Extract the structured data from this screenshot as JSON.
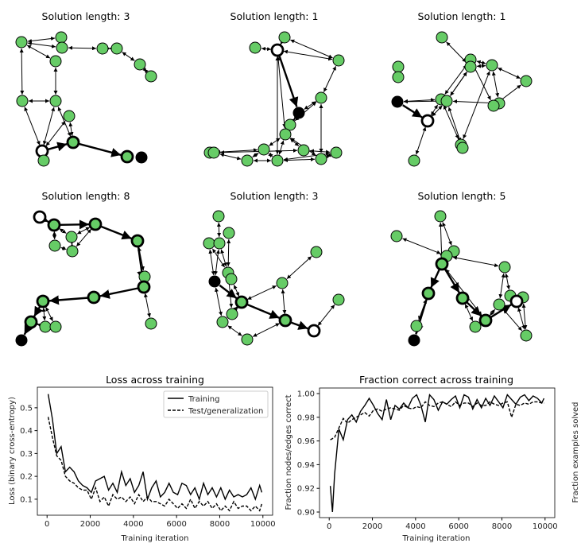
{
  "graph_panels": [
    {
      "title": "Solution length: 3"
    },
    {
      "title": "Solution length: 1"
    },
    {
      "title": "Solution length: 1"
    },
    {
      "title": "Solution length: 8"
    },
    {
      "title": "Solution length: 3"
    },
    {
      "title": "Solution length: 5"
    }
  ],
  "colors": {
    "node": "#66cc66",
    "edge": "#000000",
    "start": "#ffffff",
    "end": "#000000"
  },
  "chart_data": [
    {
      "type": "line",
      "title": "Loss across training",
      "xlabel": "Training iteration",
      "ylabel": "Loss (binary cross-entropy)",
      "xlim": [
        -450,
        10450
      ],
      "ylim": [
        0.03,
        0.59
      ],
      "xticks": [
        0,
        2000,
        4000,
        6000,
        8000,
        10000
      ],
      "yticks": [
        0.1,
        0.2,
        0.3,
        0.4,
        0.5
      ],
      "legend": "top-right",
      "x": [
        50,
        250,
        450,
        650,
        850,
        1050,
        1250,
        1450,
        1650,
        1850,
        2050,
        2250,
        2450,
        2650,
        2850,
        3050,
        3250,
        3450,
        3650,
        3850,
        4050,
        4250,
        4450,
        4650,
        4850,
        5050,
        5250,
        5450,
        5650,
        5850,
        6050,
        6250,
        6450,
        6650,
        6850,
        7050,
        7250,
        7450,
        7650,
        7850,
        8050,
        8250,
        8450,
        8650,
        8850,
        9050,
        9250,
        9450,
        9650,
        9850,
        9950
      ],
      "series": [
        {
          "name": "Training",
          "style": "solid",
          "values": [
            0.56,
            0.45,
            0.3,
            0.33,
            0.22,
            0.24,
            0.22,
            0.18,
            0.16,
            0.15,
            0.13,
            0.18,
            0.19,
            0.2,
            0.14,
            0.17,
            0.13,
            0.22,
            0.16,
            0.19,
            0.13,
            0.16,
            0.22,
            0.1,
            0.15,
            0.18,
            0.11,
            0.13,
            0.17,
            0.13,
            0.12,
            0.17,
            0.16,
            0.12,
            0.15,
            0.1,
            0.17,
            0.12,
            0.15,
            0.11,
            0.15,
            0.1,
            0.14,
            0.11,
            0.12,
            0.11,
            0.12,
            0.15,
            0.1,
            0.16,
            0.13
          ]
        },
        {
          "name": "Test/generalization",
          "style": "dashed",
          "values": [
            0.46,
            0.37,
            0.29,
            0.27,
            0.2,
            0.18,
            0.17,
            0.15,
            0.14,
            0.14,
            0.1,
            0.15,
            0.09,
            0.11,
            0.07,
            0.12,
            0.1,
            0.11,
            0.09,
            0.11,
            0.08,
            0.12,
            0.09,
            0.11,
            0.09,
            0.09,
            0.08,
            0.07,
            0.1,
            0.08,
            0.06,
            0.08,
            0.06,
            0.1,
            0.06,
            0.09,
            0.07,
            0.09,
            0.06,
            0.08,
            0.05,
            0.07,
            0.05,
            0.09,
            0.06,
            0.07,
            0.07,
            0.05,
            0.07,
            0.05,
            0.08
          ]
        }
      ]
    },
    {
      "type": "line",
      "title": "Fraction correct across training",
      "xlabel": "Training iteration",
      "ylabel": "Fraction nodes/edges correct",
      "ylabel_right": "Fraction examples solved",
      "xlim": [
        -450,
        10450
      ],
      "ylim": [
        0.8953,
        1.0047
      ],
      "xticks": [
        0,
        2000,
        4000,
        6000,
        8000,
        10000
      ],
      "yticks": [
        0.9,
        0.92,
        0.94,
        0.96,
        0.98,
        1.0
      ],
      "x": [
        50,
        150,
        250,
        450,
        650,
        850,
        1050,
        1250,
        1450,
        1650,
        1850,
        2050,
        2250,
        2450,
        2650,
        2850,
        3050,
        3250,
        3450,
        3650,
        3850,
        4050,
        4250,
        4450,
        4650,
        4850,
        5050,
        5250,
        5450,
        5650,
        5850,
        6050,
        6250,
        6450,
        6650,
        6850,
        7050,
        7250,
        7450,
        7650,
        7850,
        8050,
        8250,
        8450,
        8650,
        8850,
        9050,
        9250,
        9450,
        9650,
        9850,
        9950
      ],
      "series": [
        {
          "name": "Training",
          "style": "solid",
          "values": [
            0.922,
            0.9,
            0.932,
            0.97,
            0.961,
            0.978,
            0.982,
            0.976,
            0.985,
            0.99,
            0.996,
            0.99,
            0.983,
            0.978,
            0.995,
            0.978,
            0.99,
            0.987,
            0.992,
            0.988,
            0.996,
            0.999,
            0.99,
            0.976,
            0.999,
            0.995,
            0.986,
            0.993,
            0.991,
            0.995,
            0.998,
            0.988,
            0.999,
            0.997,
            0.987,
            0.995,
            0.988,
            0.996,
            0.99,
            0.998,
            0.993,
            0.988,
            0.999,
            0.995,
            0.991,
            0.997,
            0.999,
            0.994,
            0.998,
            0.996,
            0.992,
            0.996
          ]
        },
        {
          "name": "Test/generalization",
          "style": "dashed",
          "values": [
            0.961,
            0.962,
            0.963,
            0.971,
            0.979,
            0.975,
            0.978,
            0.98,
            0.982,
            0.984,
            0.981,
            0.986,
            0.987,
            0.985,
            0.987,
            0.988,
            0.987,
            0.986,
            0.99,
            0.988,
            0.987,
            0.989,
            0.988,
            0.993,
            0.99,
            0.989,
            0.992,
            0.993,
            0.991,
            0.989,
            0.993,
            0.99,
            0.992,
            0.992,
            0.989,
            0.992,
            0.99,
            0.99,
            0.993,
            0.991,
            0.99,
            0.992,
            0.993,
            0.98,
            0.991,
            0.99,
            0.992,
            0.991,
            0.993,
            0.993,
            0.992,
            0.992
          ]
        }
      ]
    }
  ]
}
